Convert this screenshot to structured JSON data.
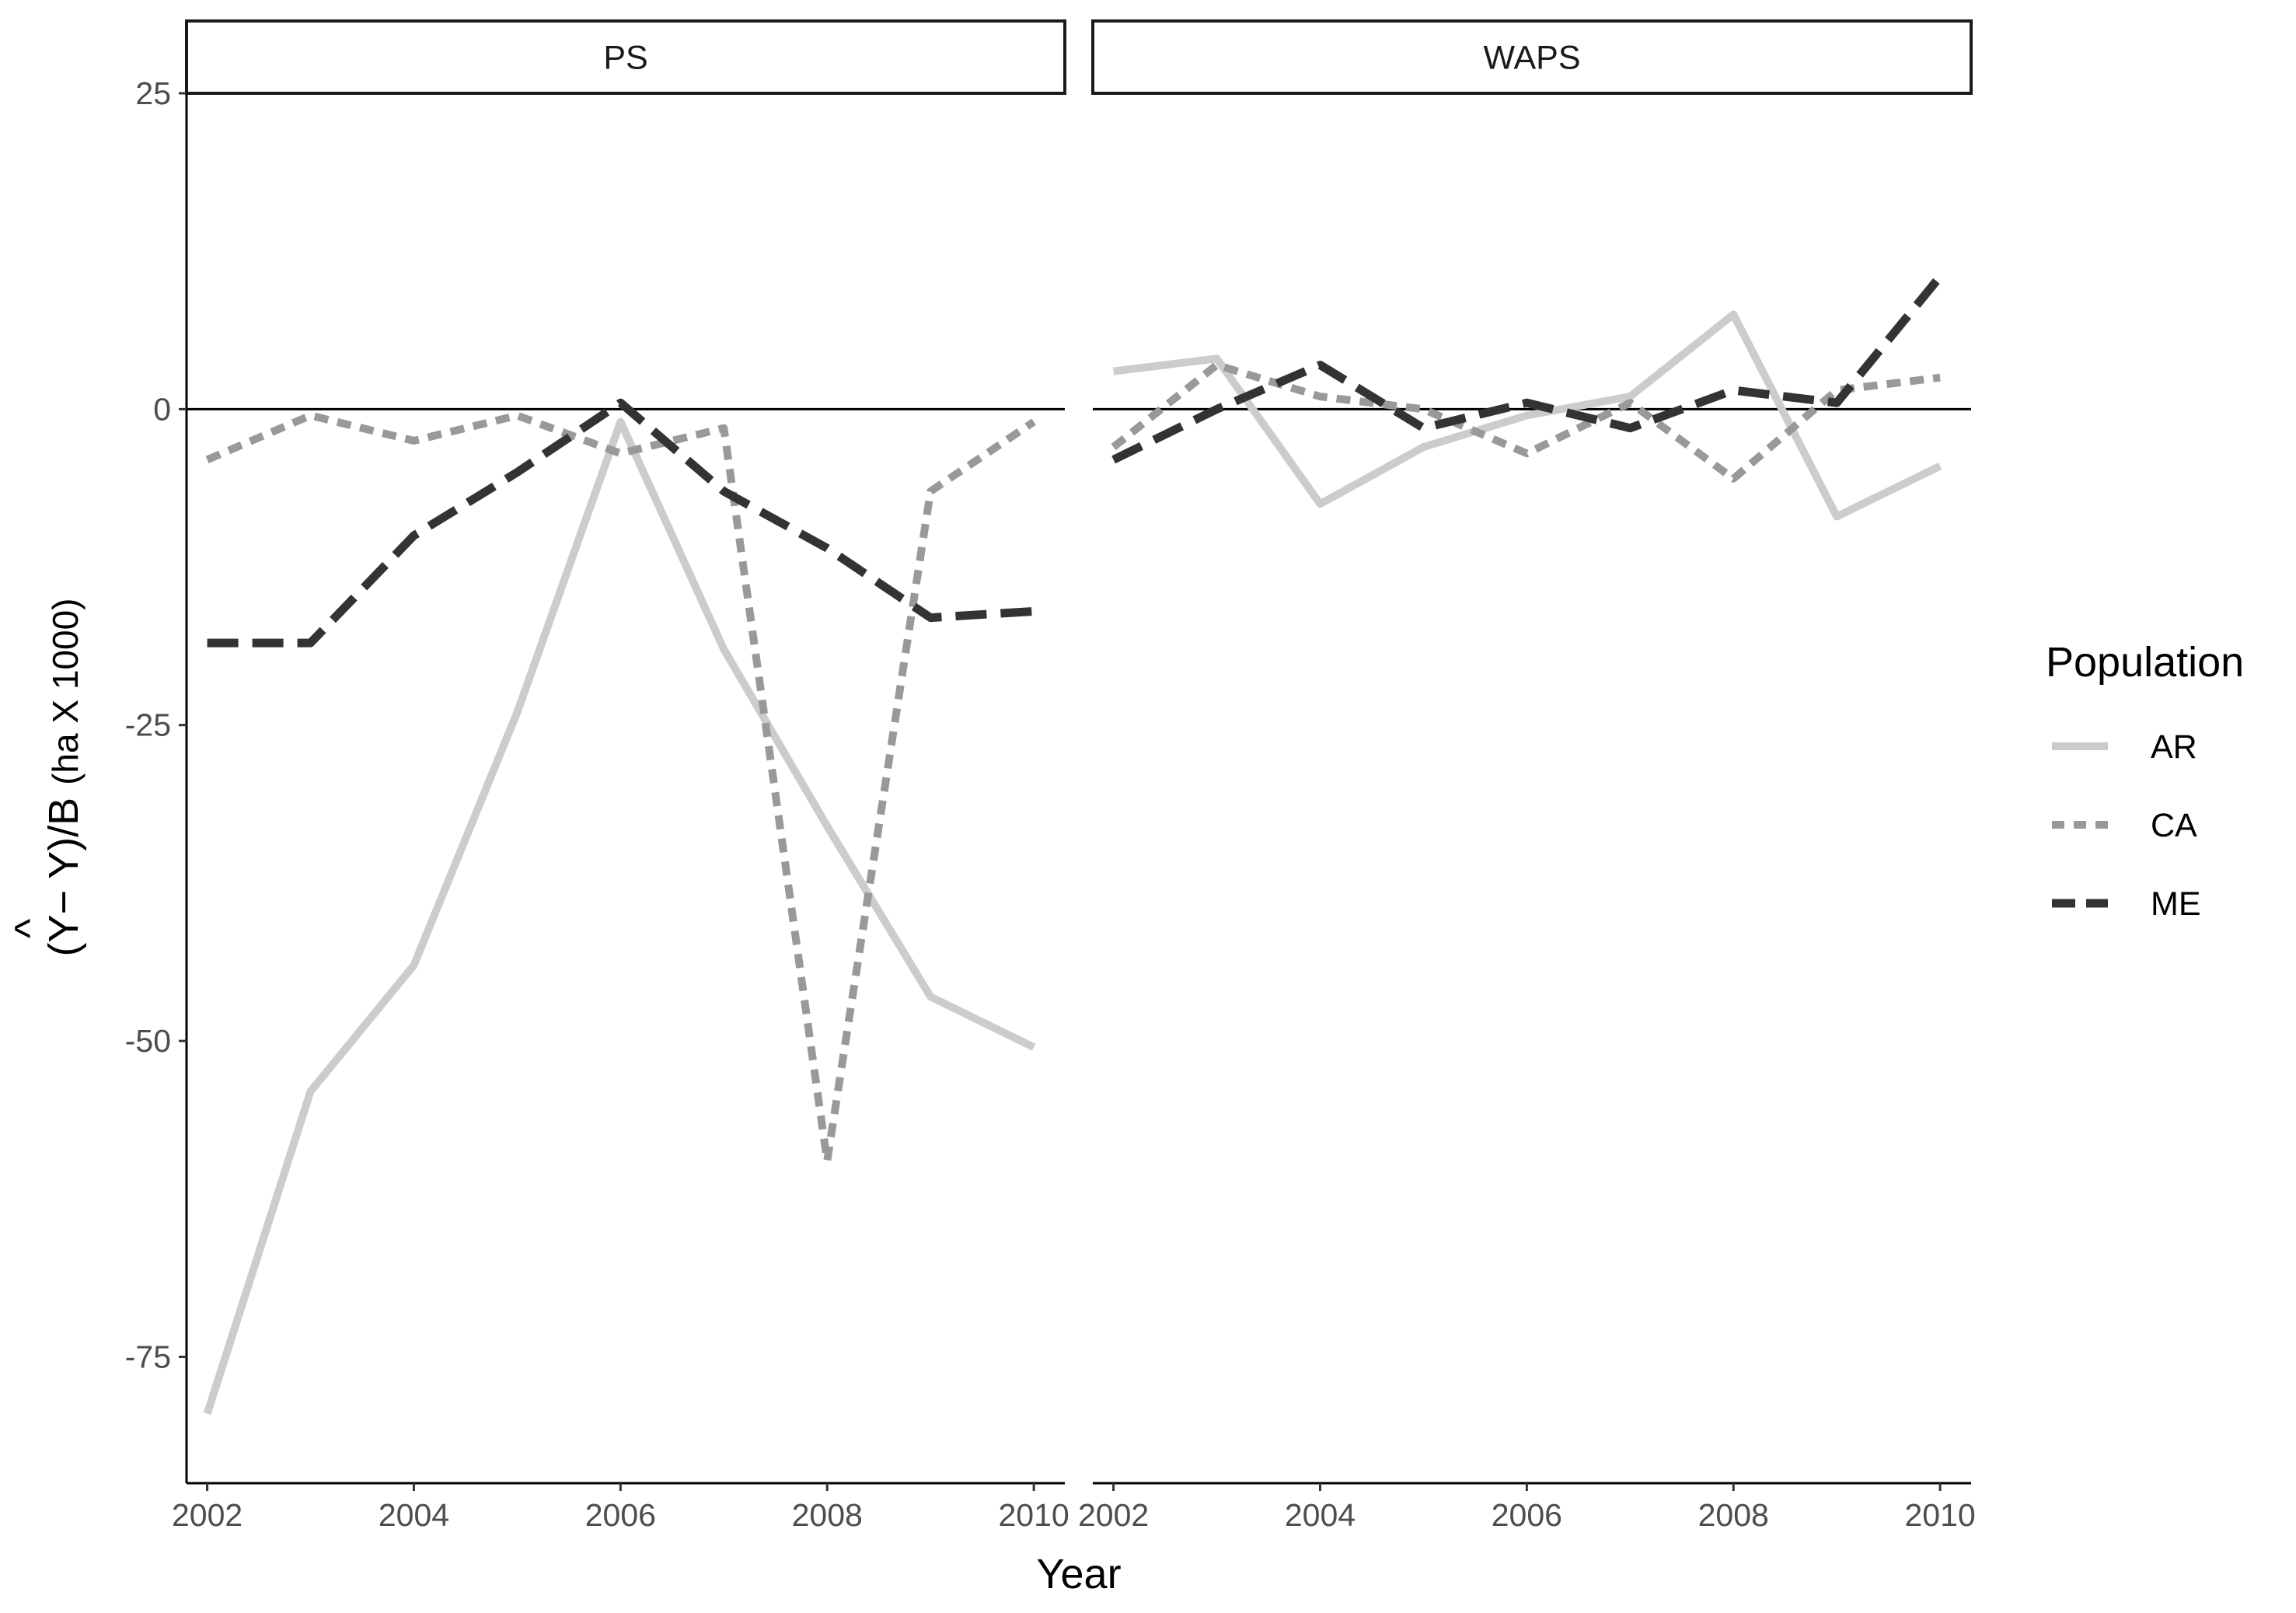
{
  "chart_data": {
    "type": "line",
    "xlabel": "Year",
    "ylabel": "(Ŷ − Y)/B (ha X 1000)",
    "ylabel_parts": {
      "open": "(",
      "yhat": "Y",
      "hat": "^",
      "rest": "− Y)/B",
      "units": "(ha X 1000)"
    },
    "ylim": [
      -85,
      25
    ],
    "xlim": [
      2001.8,
      2010.3
    ],
    "yticks": [
      25,
      0,
      -25,
      -50,
      -75
    ],
    "ytick_labels": [
      "25",
      "0",
      "-25",
      "-50",
      "-75"
    ],
    "xticks": [
      2002,
      2004,
      2006,
      2008,
      2010
    ],
    "xtick_labels": [
      "2002",
      "2004",
      "2006",
      "2008",
      "2010"
    ],
    "reference_line": 0,
    "grid": false,
    "legend": {
      "title": "Population",
      "position": "right",
      "entries": [
        "AR",
        "CA",
        "ME"
      ]
    },
    "series_styles": [
      {
        "name": "AR",
        "color": "#cccccc",
        "dash": "solid"
      },
      {
        "name": "CA",
        "color": "#999999",
        "dash": "short"
      },
      {
        "name": "ME",
        "color": "#333333",
        "dash": "long"
      }
    ],
    "panels": [
      {
        "title": "PS",
        "x": [
          2002,
          2003,
          2004,
          2005,
          2006,
          2007,
          2008,
          2009,
          2010
        ],
        "series": [
          {
            "name": "AR",
            "values": [
              -79.5,
              -54,
              -44,
              -24,
              -1,
              -19,
              -33,
              -46.5,
              -50.5
            ]
          },
          {
            "name": "CA",
            "values": [
              -4,
              -0.5,
              -2.5,
              -0.5,
              -3.5,
              -1.5,
              -59.5,
              -6.5,
              -1
            ]
          },
          {
            "name": "ME",
            "values": [
              -18.5,
              -18.5,
              -10,
              -5,
              0.5,
              -6.5,
              -11,
              -16.5,
              -16
            ]
          }
        ]
      },
      {
        "title": "WAPS",
        "x": [
          2002,
          2003,
          2004,
          2005,
          2006,
          2007,
          2008,
          2009,
          2010
        ],
        "series": [
          {
            "name": "AR",
            "values": [
              3,
              4,
              -7.5,
              -3,
              -0.5,
              1,
              7.5,
              -8.5,
              -4.5
            ]
          },
          {
            "name": "CA",
            "values": [
              -3,
              3.5,
              1,
              0,
              -3.5,
              0.5,
              -5.5,
              1.5,
              2.5
            ]
          },
          {
            "name": "ME",
            "values": [
              -4,
              0,
              3.5,
              -1.5,
              0.5,
              -1.5,
              1.5,
              0.5,
              10.5
            ]
          }
        ]
      }
    ]
  }
}
